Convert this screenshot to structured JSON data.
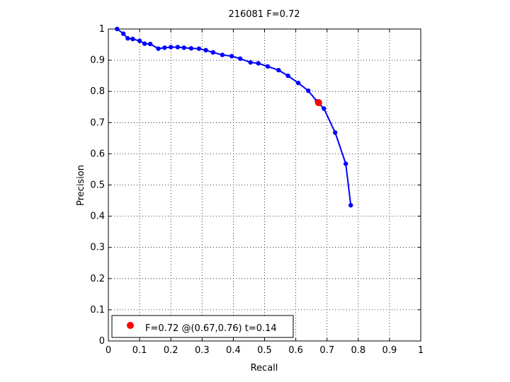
{
  "chart_data": {
    "type": "line",
    "title": "216081 F=0.72",
    "xlabel": "Recall",
    "ylabel": "Precision",
    "xlim": [
      0,
      1
    ],
    "ylim": [
      0,
      1
    ],
    "xticks": [
      "0",
      "0.1",
      "0.2",
      "0.3",
      "0.4",
      "0.5",
      "0.6",
      "0.7",
      "0.8",
      "0.9",
      "1"
    ],
    "yticks": [
      "0",
      "0.1",
      "0.2",
      "0.3",
      "0.4",
      "0.5",
      "0.6",
      "0.7",
      "0.8",
      "0.9",
      "1"
    ],
    "grid": true,
    "legend_position": "bottom-left",
    "series": [
      {
        "color": "#0000ff",
        "x": [
          0.028,
          0.048,
          0.062,
          0.078,
          0.1,
          0.116,
          0.134,
          0.16,
          0.18,
          0.2,
          0.222,
          0.242,
          0.265,
          0.29,
          0.312,
          0.335,
          0.365,
          0.395,
          0.422,
          0.455,
          0.48,
          0.51,
          0.545,
          0.575,
          0.608,
          0.64,
          0.668,
          0.69,
          0.726,
          0.76,
          0.776
        ],
        "y": [
          1.0,
          0.985,
          0.97,
          0.968,
          0.962,
          0.953,
          0.952,
          0.937,
          0.94,
          0.942,
          0.942,
          0.94,
          0.938,
          0.937,
          0.932,
          0.925,
          0.917,
          0.913,
          0.905,
          0.893,
          0.89,
          0.88,
          0.868,
          0.85,
          0.827,
          0.802,
          0.768,
          0.745,
          0.668,
          0.568,
          0.435
        ]
      }
    ],
    "best_point": {
      "x": 0.673,
      "y": 0.764,
      "color": "#ff0000"
    },
    "legend": {
      "label": "F=0.72 @(0.67,0.76) t=0.14"
    }
  }
}
